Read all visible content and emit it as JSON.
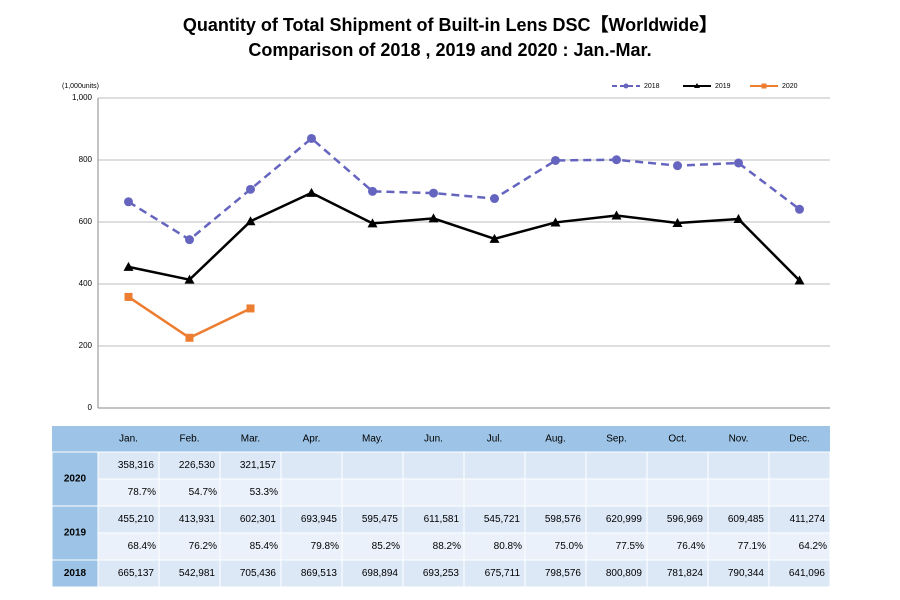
{
  "chart_data": {
    "type": "line",
    "title": "Quantity of Total Shipment of Built-in Lens DSC【Worldwide】",
    "subtitle": "Comparison of 2018 , 2019 and 2020 : Jan.-Mar.",
    "y_label": "(1,000units)",
    "categories": [
      "Jan.",
      "Feb.",
      "Mar.",
      "Apr.",
      "May.",
      "Jun.",
      "Jul.",
      "Aug.",
      "Sep.",
      "Oct.",
      "Nov.",
      "Dec."
    ],
    "ylim": [
      0,
      1000
    ],
    "yticks": [
      0,
      200,
      400,
      600,
      800,
      {
        "value": 1000,
        "label": "1,000"
      }
    ],
    "grid": true,
    "legend": "top-right",
    "series": [
      {
        "name": "2018",
        "color": "#6565bf",
        "dashed": true,
        "marker": "circle",
        "values": [
          665.137,
          542.981,
          705.436,
          869.513,
          698.894,
          693.253,
          675.711,
          798.576,
          800.809,
          781.824,
          790.344,
          641.096
        ],
        "value_labels": [
          "665,137",
          "542,981",
          "705,436",
          "869,513",
          "698,894",
          "693,253",
          "675,711",
          "798,576",
          "800,809",
          "781,824",
          "790,344",
          "641,096"
        ]
      },
      {
        "name": "2019",
        "color": "#000000",
        "dashed": false,
        "marker": "triangle",
        "values": [
          455.21,
          413.931,
          602.301,
          693.945,
          595.475,
          611.581,
          545.721,
          598.576,
          620.999,
          596.969,
          609.485,
          411.274
        ],
        "value_labels": [
          "455,210",
          "413,931",
          "602,301",
          "693,945",
          "595,475",
          "611,581",
          "545,721",
          "598,576",
          "620,999",
          "596,969",
          "609,485",
          "411,274"
        ],
        "change": [
          68.4,
          76.2,
          85.4,
          79.8,
          85.2,
          88.2,
          80.8,
          75.0,
          77.5,
          76.4,
          77.1,
          64.2
        ],
        "change_labels": [
          "68.4%",
          "76.2%",
          "85.4%",
          "79.8%",
          "85.2%",
          "88.2%",
          "80.8%",
          "75.0%",
          "77.5%",
          "76.4%",
          "77.1%",
          "64.2%"
        ]
      },
      {
        "name": "2020",
        "color": "#ed7d31",
        "dashed": false,
        "marker": "square",
        "values": [
          358.316,
          226.53,
          321.157,
          null,
          null,
          null,
          null,
          null,
          null,
          null,
          null,
          null
        ],
        "value_labels": [
          "358,316",
          "226,530",
          "321,157",
          null,
          null,
          null,
          null,
          null,
          null,
          null,
          null,
          null
        ],
        "change": [
          78.7,
          54.7,
          53.3,
          null,
          null,
          null,
          null,
          null,
          null,
          null,
          null,
          null
        ],
        "change_labels": [
          "78.7%",
          "54.7%",
          "53.3%",
          null,
          null,
          null,
          null,
          null,
          null,
          null,
          null,
          null
        ]
      }
    ]
  }
}
